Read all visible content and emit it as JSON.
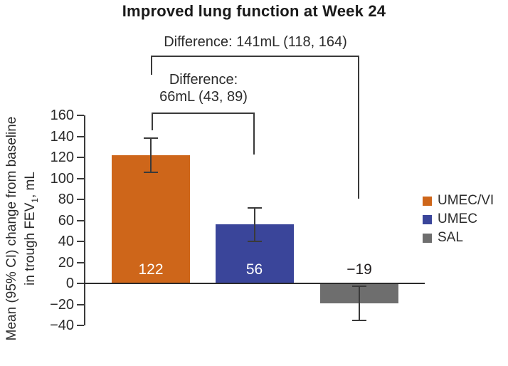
{
  "chart_data": {
    "type": "bar",
    "title": "Improved lung function at Week 24",
    "ylabel_line1": "Mean (95% CI) change from baseline",
    "ylabel_line2_prefix": "in trough FEV",
    "ylabel_line2_sub": "1",
    "ylabel_line2_suffix": ", mL",
    "categories": [
      "UMEC/VI",
      "UMEC",
      "SAL"
    ],
    "values": [
      122,
      56,
      -19
    ],
    "ci_lower": [
      106,
      40,
      -35
    ],
    "ci_upper": [
      138,
      72,
      -3
    ],
    "bar_colors": [
      "#ce661a",
      "#3a459a",
      "#6e6e6e"
    ],
    "value_label_colors": [
      "#ffffff",
      "#ffffff",
      "#231f20"
    ],
    "ylim": [
      -40,
      160
    ],
    "ytick_step": 20,
    "yticks": [
      160,
      140,
      120,
      100,
      80,
      60,
      40,
      20,
      0,
      -20,
      -40
    ],
    "grid": false,
    "legend_position": "right",
    "legend": [
      {
        "label": "UMEC/VI",
        "color": "#ce661a"
      },
      {
        "label": "UMEC",
        "color": "#3a459a"
      },
      {
        "label": "SAL",
        "color": "#6e6e6e"
      }
    ],
    "annotations": [
      {
        "text": "Difference: 141mL (118, 164)",
        "from": "UMEC/VI",
        "to": "SAL"
      },
      {
        "text_line1": "Difference:",
        "text_line2": "66mL (43, 89)",
        "from": "UMEC/VI",
        "to": "UMEC"
      }
    ]
  }
}
